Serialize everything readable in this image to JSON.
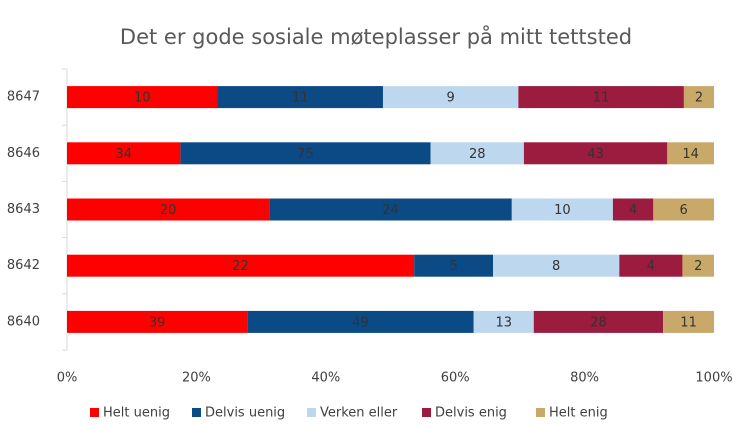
{
  "chart_data": {
    "type": "stacked-bar-100",
    "title": "Det er gode sosiale møteplasser på mitt tettsted",
    "categories": [
      "8647",
      "8646",
      "8643",
      "8642",
      "8640"
    ],
    "series": [
      {
        "name": "Helt uenig",
        "color": "#ff0000",
        "values": [
          10,
          34,
          20,
          22,
          39
        ]
      },
      {
        "name": "Delvis uenig",
        "color": "#0b4a85",
        "values": [
          11,
          75,
          24,
          5,
          49
        ]
      },
      {
        "name": "Verken eller",
        "color": "#bdd7ee",
        "values": [
          9,
          28,
          10,
          8,
          13
        ]
      },
      {
        "name": "Delvis enig",
        "color": "#9b1c3f",
        "values": [
          11,
          43,
          4,
          4,
          28
        ]
      },
      {
        "name": "Helt enig",
        "color": "#c9a96a",
        "values": [
          2,
          14,
          6,
          2,
          11
        ]
      }
    ],
    "xlim": [
      0,
      100
    ],
    "xticks": [
      {
        "value": 0,
        "label": "0%"
      },
      {
        "value": 20,
        "label": "20%"
      },
      {
        "value": 40,
        "label": "40%"
      },
      {
        "value": 60,
        "label": "60%"
      },
      {
        "value": 80,
        "label": "80%"
      },
      {
        "value": 100,
        "label": "100%"
      }
    ],
    "legend": "bottom"
  }
}
